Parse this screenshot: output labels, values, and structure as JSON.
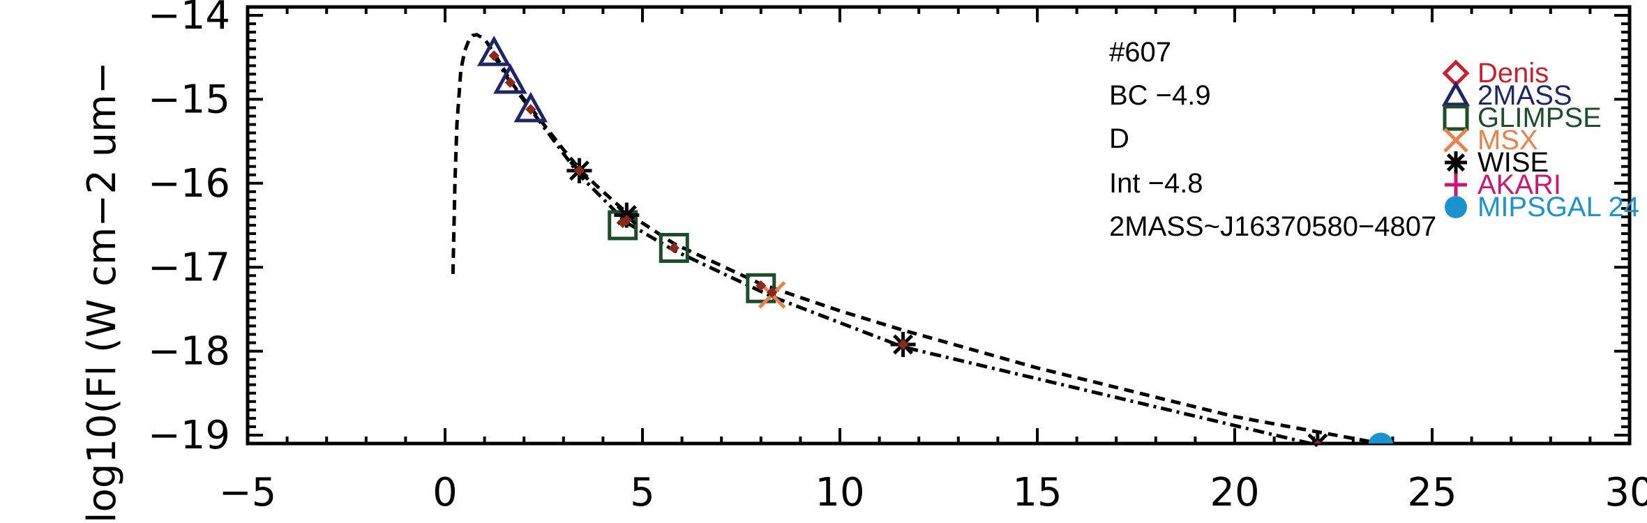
{
  "chart_data": {
    "type": "scatter",
    "ylabel": "log10(Fl (W cm−2 um−",
    "xlim": [
      -5,
      30
    ],
    "ylim": [
      -19.1,
      -13.9
    ],
    "x_ticks": [
      -5,
      0,
      5,
      10,
      15,
      20,
      25,
      30
    ],
    "x_tick_labels": [
      "−5",
      "0",
      "5",
      "10",
      "15",
      "20",
      "25",
      "30"
    ],
    "y_ticks": [
      -14,
      -15,
      -16,
      -17,
      -18,
      -19
    ],
    "y_tick_labels": [
      "−14",
      "−15",
      "−16",
      "−17",
      "−18",
      "−19"
    ],
    "annotations": [
      "#607",
      "BC −4.9",
      "D",
      "Int −4.8",
      "2MASS~J16370580−4807"
    ],
    "legend_position": "top-right",
    "legend": [
      {
        "name": "Denis",
        "marker": "diamond",
        "color": "#cc1f2e"
      },
      {
        "name": "2MASS",
        "marker": "triangle",
        "color": "#1f2566"
      },
      {
        "name": "GLIMPSE",
        "marker": "square",
        "color": "#1d4d2a"
      },
      {
        "name": "MSX",
        "marker": "x",
        "color": "#e8814a"
      },
      {
        "name": "WISE",
        "marker": "asterisk",
        "color": "#000000"
      },
      {
        "name": "AKARI",
        "marker": "plus",
        "color": "#cc1677"
      },
      {
        "name": "MIPSGAL 24",
        "marker": "circle",
        "color": "#1a93cf"
      }
    ],
    "series": [
      {
        "name": "2MASS",
        "marker": "triangle",
        "color": "#1f2566",
        "x": [
          1.24,
          1.65,
          2.17
        ],
        "y": [
          -14.45,
          -14.78,
          -15.12
        ]
      },
      {
        "name": "GLIMPSE",
        "marker": "square",
        "color": "#1d4d2a",
        "x": [
          4.5,
          5.8,
          8.0
        ],
        "y": [
          -16.5,
          -16.77,
          -17.25
        ]
      },
      {
        "name": "MSX",
        "marker": "x",
        "color": "#e8814a",
        "x": [
          8.28
        ],
        "y": [
          -17.33
        ]
      },
      {
        "name": "WISE",
        "marker": "asterisk",
        "color": "#000000",
        "x": [
          3.4,
          4.6,
          11.6,
          22.1
        ],
        "y": [
          -15.85,
          -16.38,
          -17.92,
          -19.1
        ]
      },
      {
        "name": "MIPSGAL 24",
        "marker": "circle",
        "color": "#1a93cf",
        "x": [
          23.7
        ],
        "y": [
          -19.12
        ]
      },
      {
        "name": "model fluxes",
        "marker": "small-diamond",
        "color": "#8b2a1a",
        "x": [
          1.24,
          1.65,
          2.17,
          3.4,
          4.5,
          4.6,
          5.8,
          8.0,
          8.28,
          11.6,
          22.1
        ],
        "y": [
          -14.48,
          -14.8,
          -15.12,
          -15.85,
          -16.47,
          -16.44,
          -16.77,
          -17.22,
          -17.3,
          -17.92,
          -19.12
        ]
      }
    ],
    "curves": [
      {
        "style": "dashed",
        "x": [
          0.2,
          0.25,
          0.3,
          0.4,
          0.5,
          0.6,
          0.7,
          0.8,
          1.0,
          1.24,
          1.5,
          1.65,
          2.0,
          2.17,
          3.0,
          3.5,
          4.0,
          4.6,
          5.8,
          8.0,
          10.0,
          11.6,
          15.0,
          20.0,
          23.7
        ],
        "y": [
          -17.08,
          -16.0,
          -15.3,
          -14.65,
          -14.42,
          -14.3,
          -14.24,
          -14.23,
          -14.28,
          -14.45,
          -14.65,
          -14.78,
          -15.0,
          -15.1,
          -15.6,
          -15.88,
          -16.1,
          -16.35,
          -16.72,
          -17.2,
          -17.52,
          -17.75,
          -18.2,
          -18.78,
          -19.1
        ]
      },
      {
        "style": "dash-dot",
        "x": [
          1.24,
          1.65,
          2.17,
          3.4,
          4.6,
          5.8,
          8.28,
          11.6,
          22.1
        ],
        "y": [
          -14.48,
          -14.8,
          -15.12,
          -15.9,
          -16.47,
          -16.8,
          -17.35,
          -17.95,
          -19.12
        ]
      }
    ]
  }
}
